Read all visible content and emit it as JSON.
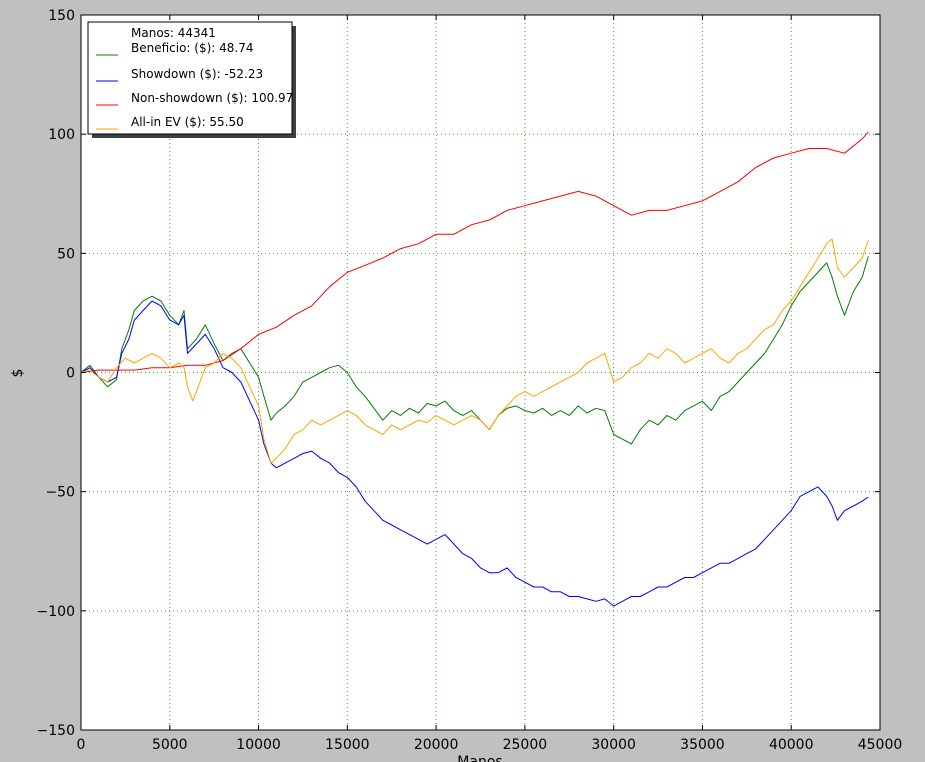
{
  "chart_data": {
    "type": "line",
    "title": "",
    "xlabel": "Manos",
    "ylabel": "$",
    "xlim": [
      0,
      45000
    ],
    "ylim": [
      -150,
      150
    ],
    "xticks": [
      0,
      5000,
      10000,
      15000,
      20000,
      25000,
      30000,
      35000,
      40000,
      45000
    ],
    "yticks": [
      -150,
      -100,
      -50,
      0,
      50,
      100,
      150
    ],
    "grid": true,
    "legend_position": "top-left",
    "legend_header": "Manos: 44341",
    "colors": {
      "background": "#c0c0c0",
      "plot_background": "#ffffff",
      "grid": "#33aa33"
    },
    "series": [
      {
        "name": "Beneficio: ($): 48.74",
        "color": "#008000",
        "x": [
          0,
          500,
          1000,
          1500,
          2000,
          2300,
          2700,
          3000,
          3500,
          4000,
          4500,
          5000,
          5500,
          5800,
          6000,
          6500,
          7000,
          7500,
          8000,
          8500,
          9000,
          9500,
          10000,
          10300,
          10700,
          11000,
          11500,
          12000,
          12500,
          13000,
          13500,
          14000,
          14500,
          15000,
          15500,
          16000,
          16500,
          17000,
          17500,
          18000,
          18500,
          19000,
          19500,
          20000,
          20500,
          21000,
          21500,
          22000,
          22500,
          23000,
          23500,
          24000,
          24500,
          25000,
          25500,
          26000,
          26500,
          27000,
          27500,
          28000,
          28500,
          29000,
          29500,
          30000,
          30500,
          31000,
          31500,
          32000,
          32500,
          33000,
          33500,
          34000,
          34500,
          35000,
          35500,
          36000,
          36500,
          37000,
          37500,
          38000,
          38500,
          39000,
          39500,
          40000,
          40500,
          41000,
          41500,
          42000,
          42300,
          42600,
          43000,
          43500,
          44000,
          44341
        ],
        "y": [
          0,
          3,
          -2,
          -6,
          -3,
          10,
          18,
          26,
          30,
          32,
          30,
          24,
          20,
          26,
          10,
          14,
          20,
          12,
          5,
          8,
          10,
          4,
          -2,
          -10,
          -20,
          -17,
          -14,
          -10,
          -4,
          -2,
          0,
          2,
          3,
          0,
          -6,
          -10,
          -15,
          -20,
          -16,
          -18,
          -15,
          -17,
          -13,
          -14,
          -12,
          -16,
          -18,
          -16,
          -20,
          -24,
          -18,
          -15,
          -14,
          -16,
          -17,
          -15,
          -18,
          -16,
          -18,
          -14,
          -17,
          -15,
          -16,
          -26,
          -28,
          -30,
          -24,
          -20,
          -22,
          -18,
          -20,
          -16,
          -14,
          -12,
          -16,
          -10,
          -8,
          -4,
          0,
          4,
          8,
          14,
          20,
          28,
          34,
          38,
          42,
          46,
          40,
          32,
          24,
          34,
          40,
          48.74
        ]
      },
      {
        "name": "Showdown ($): -52.23",
        "color": "#0000ff",
        "x": [
          0,
          500,
          1000,
          1500,
          2000,
          2300,
          2700,
          3000,
          3500,
          4000,
          4500,
          5000,
          5500,
          5800,
          6000,
          6500,
          7000,
          7500,
          8000,
          8500,
          9000,
          9500,
          10000,
          10300,
          10700,
          11000,
          11500,
          12000,
          12500,
          13000,
          13500,
          14000,
          14500,
          15000,
          15500,
          16000,
          16500,
          17000,
          17500,
          18000,
          18500,
          19000,
          19500,
          20000,
          20500,
          21000,
          21500,
          22000,
          22500,
          23000,
          23500,
          24000,
          24500,
          25000,
          25500,
          26000,
          26500,
          27000,
          27500,
          28000,
          28500,
          29000,
          29500,
          30000,
          30500,
          31000,
          31500,
          32000,
          32500,
          33000,
          33500,
          34000,
          34500,
          35000,
          35500,
          36000,
          36500,
          37000,
          37500,
          38000,
          38500,
          39000,
          39500,
          40000,
          40500,
          41000,
          41500,
          42000,
          42300,
          42600,
          43000,
          43500,
          44000,
          44341
        ],
        "y": [
          0,
          2,
          -2,
          -4,
          -2,
          8,
          14,
          22,
          26,
          30,
          28,
          22,
          20,
          24,
          8,
          12,
          16,
          10,
          2,
          0,
          -4,
          -12,
          -20,
          -30,
          -38,
          -40,
          -38,
          -36,
          -34,
          -33,
          -36,
          -38,
          -42,
          -44,
          -48,
          -54,
          -58,
          -62,
          -64,
          -66,
          -68,
          -70,
          -72,
          -70,
          -68,
          -72,
          -76,
          -78,
          -82,
          -84,
          -84,
          -82,
          -86,
          -88,
          -90,
          -90,
          -92,
          -92,
          -94,
          -94,
          -95,
          -96,
          -95,
          -98,
          -96,
          -94,
          -94,
          -92,
          -90,
          -90,
          -88,
          -86,
          -86,
          -84,
          -82,
          -80,
          -80,
          -78,
          -76,
          -74,
          -70,
          -66,
          -62,
          -58,
          -52,
          -50,
          -48,
          -52,
          -56,
          -62,
          -58,
          -56,
          -54,
          -52.23
        ]
      },
      {
        "name": "Non-showdown ($): 100.97",
        "color": "#ff0000",
        "x": [
          0,
          1000,
          2000,
          3000,
          4000,
          5000,
          6000,
          7000,
          8000,
          9000,
          10000,
          11000,
          12000,
          13000,
          14000,
          15000,
          16000,
          17000,
          18000,
          19000,
          20000,
          21000,
          22000,
          23000,
          24000,
          25000,
          26000,
          27000,
          28000,
          29000,
          30000,
          31000,
          32000,
          33000,
          34000,
          35000,
          36000,
          37000,
          38000,
          39000,
          40000,
          41000,
          42000,
          43000,
          44000,
          44341
        ],
        "y": [
          0,
          1,
          1,
          1,
          2,
          2,
          3,
          3,
          5,
          10,
          16,
          19,
          24,
          28,
          36,
          42,
          45,
          48,
          52,
          54,
          58,
          58,
          62,
          64,
          68,
          70,
          72,
          74,
          76,
          74,
          70,
          66,
          68,
          68,
          70,
          72,
          76,
          80,
          86,
          90,
          92,
          94,
          94,
          92,
          98,
          100.97
        ]
      },
      {
        "name": "All-in EV ($): 55.50",
        "color": "#ffa500",
        "x": [
          0,
          500,
          1000,
          1500,
          2000,
          2500,
          3000,
          3500,
          4000,
          4500,
          5000,
          5500,
          5800,
          6000,
          6300,
          6700,
          7000,
          7500,
          8000,
          8500,
          9000,
          9500,
          10000,
          10300,
          10700,
          11000,
          11500,
          12000,
          12500,
          13000,
          13500,
          14000,
          14500,
          15000,
          15500,
          16000,
          16500,
          17000,
          17500,
          18000,
          18500,
          19000,
          19500,
          20000,
          20500,
          21000,
          21500,
          22000,
          22500,
          23000,
          23500,
          24000,
          24500,
          25000,
          25500,
          26000,
          26500,
          27000,
          27500,
          28000,
          28500,
          29000,
          29500,
          30000,
          30500,
          31000,
          31500,
          32000,
          32500,
          33000,
          33500,
          34000,
          34500,
          35000,
          35500,
          36000,
          36500,
          37000,
          37500,
          38000,
          38500,
          39000,
          39500,
          40000,
          40500,
          41000,
          41500,
          42000,
          42300,
          42600,
          43000,
          43500,
          44000,
          44341
        ],
        "y": [
          0,
          1,
          -2,
          -4,
          2,
          6,
          4,
          6,
          8,
          6,
          2,
          4,
          2,
          -6,
          -12,
          -4,
          2,
          4,
          8,
          6,
          2,
          -6,
          -14,
          -28,
          -38,
          -36,
          -32,
          -26,
          -24,
          -20,
          -22,
          -20,
          -18,
          -16,
          -18,
          -22,
          -24,
          -26,
          -22,
          -24,
          -22,
          -20,
          -21,
          -18,
          -20,
          -22,
          -20,
          -18,
          -20,
          -24,
          -18,
          -14,
          -10,
          -8,
          -10,
          -8,
          -6,
          -4,
          -2,
          0,
          4,
          6,
          8,
          -4,
          -2,
          2,
          4,
          8,
          6,
          10,
          8,
          4,
          6,
          8,
          10,
          6,
          4,
          8,
          10,
          14,
          18,
          20,
          26,
          30,
          36,
          42,
          48,
          54,
          56,
          44,
          40,
          44,
          48,
          55.5
        ]
      }
    ]
  }
}
